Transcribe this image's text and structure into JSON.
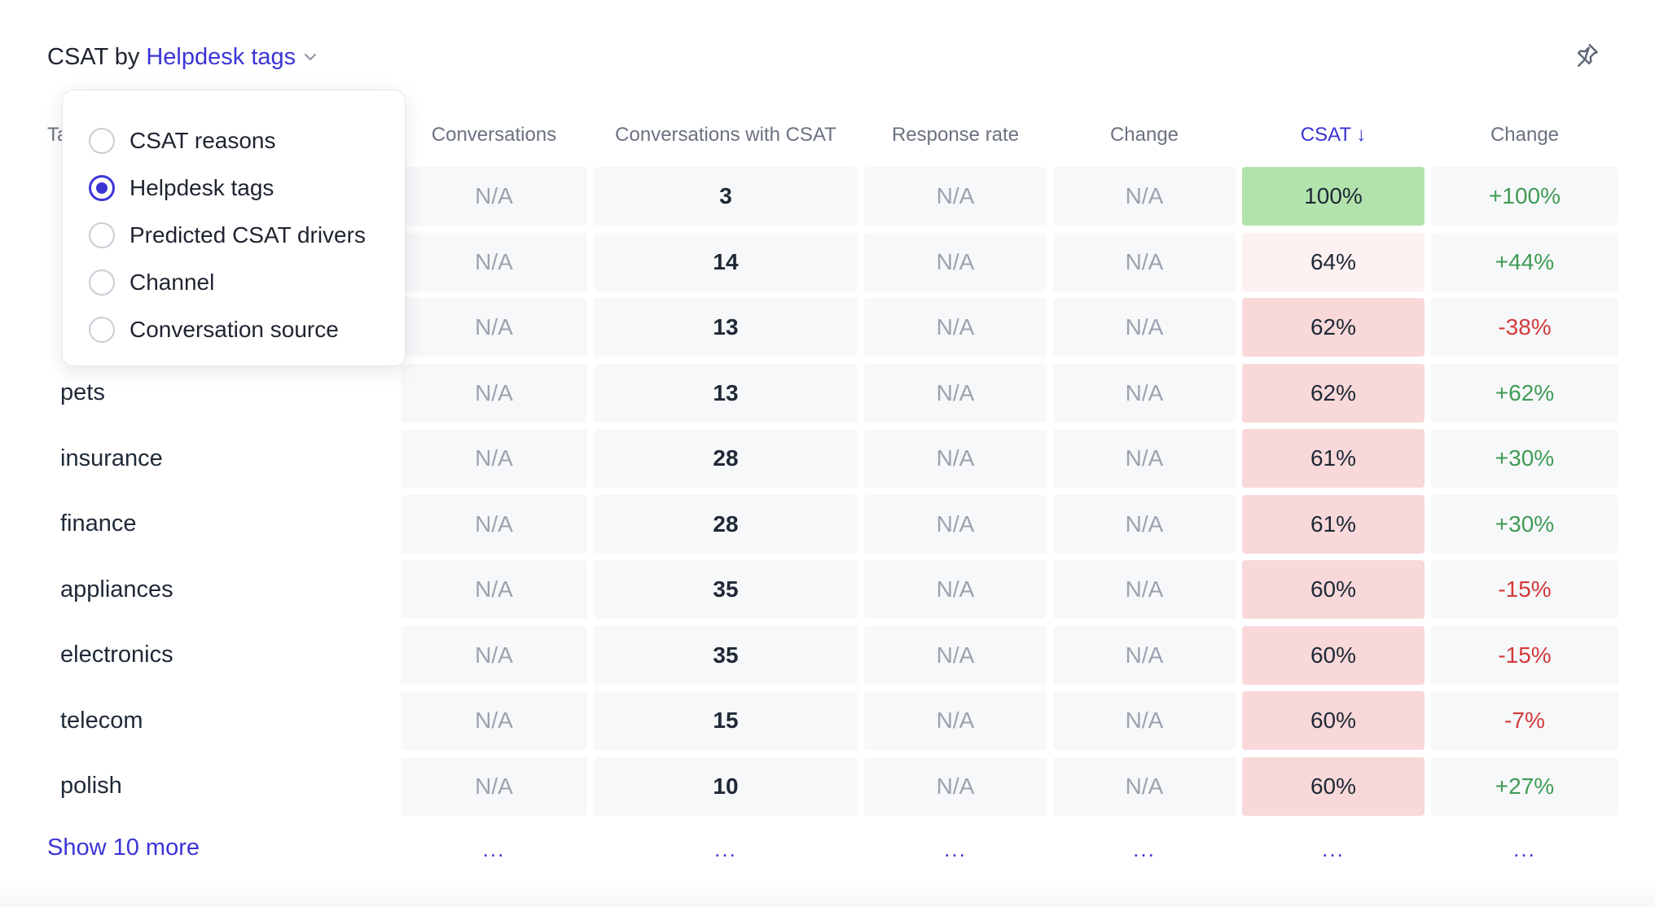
{
  "header": {
    "prefix": "CSAT by",
    "group_by": "Helpdesk tags"
  },
  "icons": {
    "pin": "pin-icon",
    "chevron": "chevron-down-icon",
    "sort": "arrow-down-icon"
  },
  "columns": {
    "tag": "Ta",
    "conversations": "Conversations",
    "conversations_with_csat": "Conversations with CSAT",
    "response_rate": "Response rate",
    "change": "Change",
    "csat": "CSAT ↓",
    "csat_change": "Change"
  },
  "rows": [
    {
      "tag": "",
      "conversations": "N/A",
      "with_csat": "3",
      "response_rate": "N/A",
      "change": "N/A",
      "csat": "100%",
      "csat_change": "+100%"
    },
    {
      "tag": "",
      "conversations": "N/A",
      "with_csat": "14",
      "response_rate": "N/A",
      "change": "N/A",
      "csat": "64%",
      "csat_change": "+44%"
    },
    {
      "tag": "",
      "conversations": "N/A",
      "with_csat": "13",
      "response_rate": "N/A",
      "change": "N/A",
      "csat": "62%",
      "csat_change": "-38%"
    },
    {
      "tag": "pets",
      "conversations": "N/A",
      "with_csat": "13",
      "response_rate": "N/A",
      "change": "N/A",
      "csat": "62%",
      "csat_change": "+62%"
    },
    {
      "tag": "insurance",
      "conversations": "N/A",
      "with_csat": "28",
      "response_rate": "N/A",
      "change": "N/A",
      "csat": "61%",
      "csat_change": "+30%"
    },
    {
      "tag": "finance",
      "conversations": "N/A",
      "with_csat": "28",
      "response_rate": "N/A",
      "change": "N/A",
      "csat": "61%",
      "csat_change": "+30%"
    },
    {
      "tag": "appliances",
      "conversations": "N/A",
      "with_csat": "35",
      "response_rate": "N/A",
      "change": "N/A",
      "csat": "60%",
      "csat_change": "-15%"
    },
    {
      "tag": "electronics",
      "conversations": "N/A",
      "with_csat": "35",
      "response_rate": "N/A",
      "change": "N/A",
      "csat": "60%",
      "csat_change": "-15%"
    },
    {
      "tag": "telecom",
      "conversations": "N/A",
      "with_csat": "15",
      "response_rate": "N/A",
      "change": "N/A",
      "csat": "60%",
      "csat_change": "-7%"
    },
    {
      "tag": "polish",
      "conversations": "N/A",
      "with_csat": "10",
      "response_rate": "N/A",
      "change": "N/A",
      "csat": "60%",
      "csat_change": "+27%"
    }
  ],
  "colors": {
    "csat_high": "#b3e3ac",
    "csat_mid": "#fdf1f1",
    "csat_low": "#f8d8d9",
    "positive": "#3f9b55",
    "negative": "#d23a3a",
    "accent": "#3b35d6"
  },
  "footer": {
    "show_more": "Show 10 more",
    "ellipsis": "..."
  },
  "dropdown": {
    "options": [
      {
        "label": "CSAT reasons",
        "selected": false
      },
      {
        "label": "Helpdesk tags",
        "selected": true
      },
      {
        "label": "Predicted CSAT drivers",
        "selected": false
      },
      {
        "label": "Channel",
        "selected": false
      },
      {
        "label": "Conversation source",
        "selected": false
      }
    ]
  }
}
